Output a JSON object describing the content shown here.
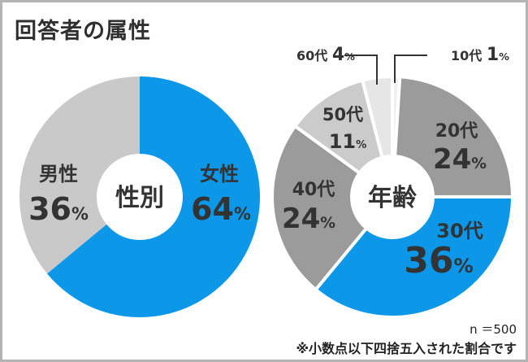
{
  "title": "回答者の属性",
  "footer": {
    "n": "n ＝500",
    "note": "※小数点以下四捨五入された割合です"
  },
  "chart_data": [
    {
      "type": "pie",
      "center_label": "性別",
      "unit": "%",
      "slices": [
        {
          "label": "女性",
          "value": 64,
          "color": "#0c97e8"
        },
        {
          "label": "男性",
          "value": 36,
          "color": "#c9c9c9"
        }
      ]
    },
    {
      "type": "pie",
      "center_label": "年齢",
      "unit": "%",
      "slices": [
        {
          "label": "10代",
          "value": 1,
          "color": "#f0f0f0"
        },
        {
          "label": "20代",
          "value": 24,
          "color": "#9b9b9b"
        },
        {
          "label": "30代",
          "value": 36,
          "color": "#0c97e8"
        },
        {
          "label": "40代",
          "value": 24,
          "color": "#9b9b9b"
        },
        {
          "label": "50代",
          "value": 11,
          "color": "#cbcbcb"
        },
        {
          "label": "60代",
          "value": 4,
          "color": "#e6e6e6"
        }
      ]
    }
  ]
}
